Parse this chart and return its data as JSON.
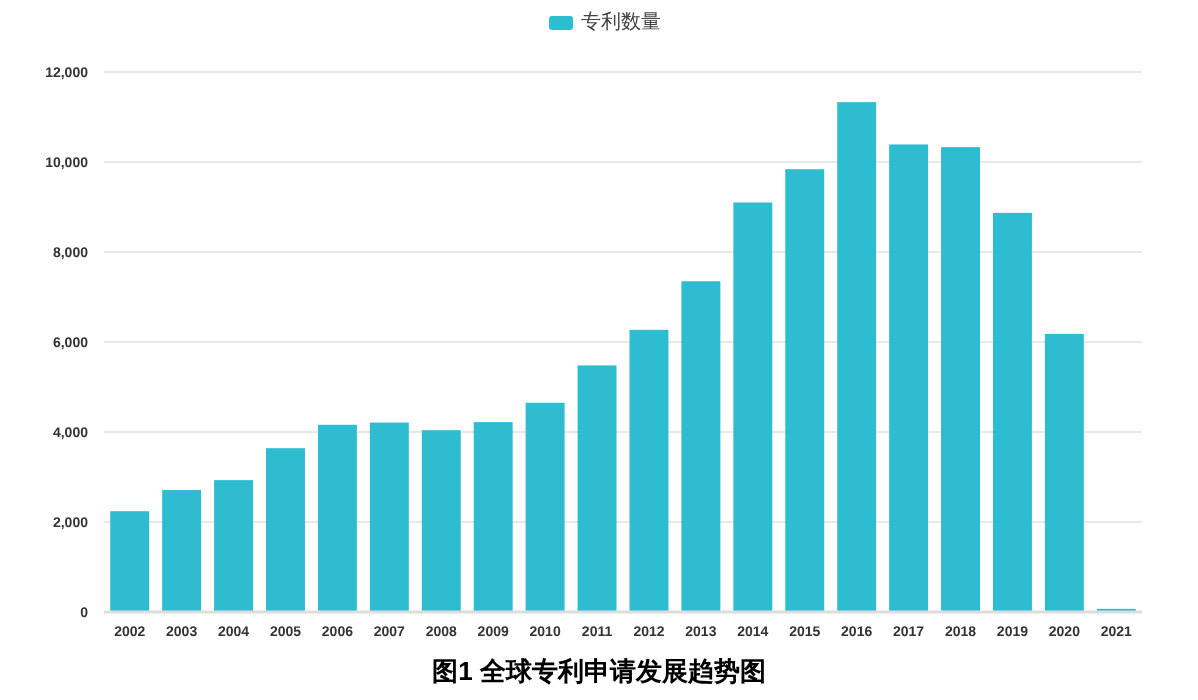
{
  "chart_data": {
    "type": "bar",
    "categories": [
      "2002",
      "2003",
      "2004",
      "2005",
      "2006",
      "2007",
      "2008",
      "2009",
      "2010",
      "2011",
      "2012",
      "2013",
      "2014",
      "2015",
      "2016",
      "2017",
      "2018",
      "2019",
      "2020",
      "2021"
    ],
    "series": [
      {
        "name": "专利数量",
        "color": "#2ebcd0",
        "values": [
          2240,
          2710,
          2930,
          3640,
          4160,
          4210,
          4040,
          4220,
          4650,
          5480,
          6270,
          7350,
          9100,
          9840,
          11330,
          10390,
          10330,
          8870,
          6180,
          70
        ]
      }
    ],
    "ylim": [
      0,
      12000
    ],
    "yticks": [
      0,
      {
        "value": 2000,
        "label": "2,000"
      },
      {
        "value": 4000,
        "label": "4,000"
      },
      {
        "value": 6000,
        "label": "6,000"
      },
      {
        "value": 8000,
        "label": "8,000"
      },
      {
        "value": 10000,
        "label": "10,000"
      },
      {
        "value": 12000,
        "label": "12,000"
      }
    ],
    "grid": "y",
    "legend": "top",
    "annotations": [
      "图1 全球专利申请发展趋势图"
    ]
  }
}
